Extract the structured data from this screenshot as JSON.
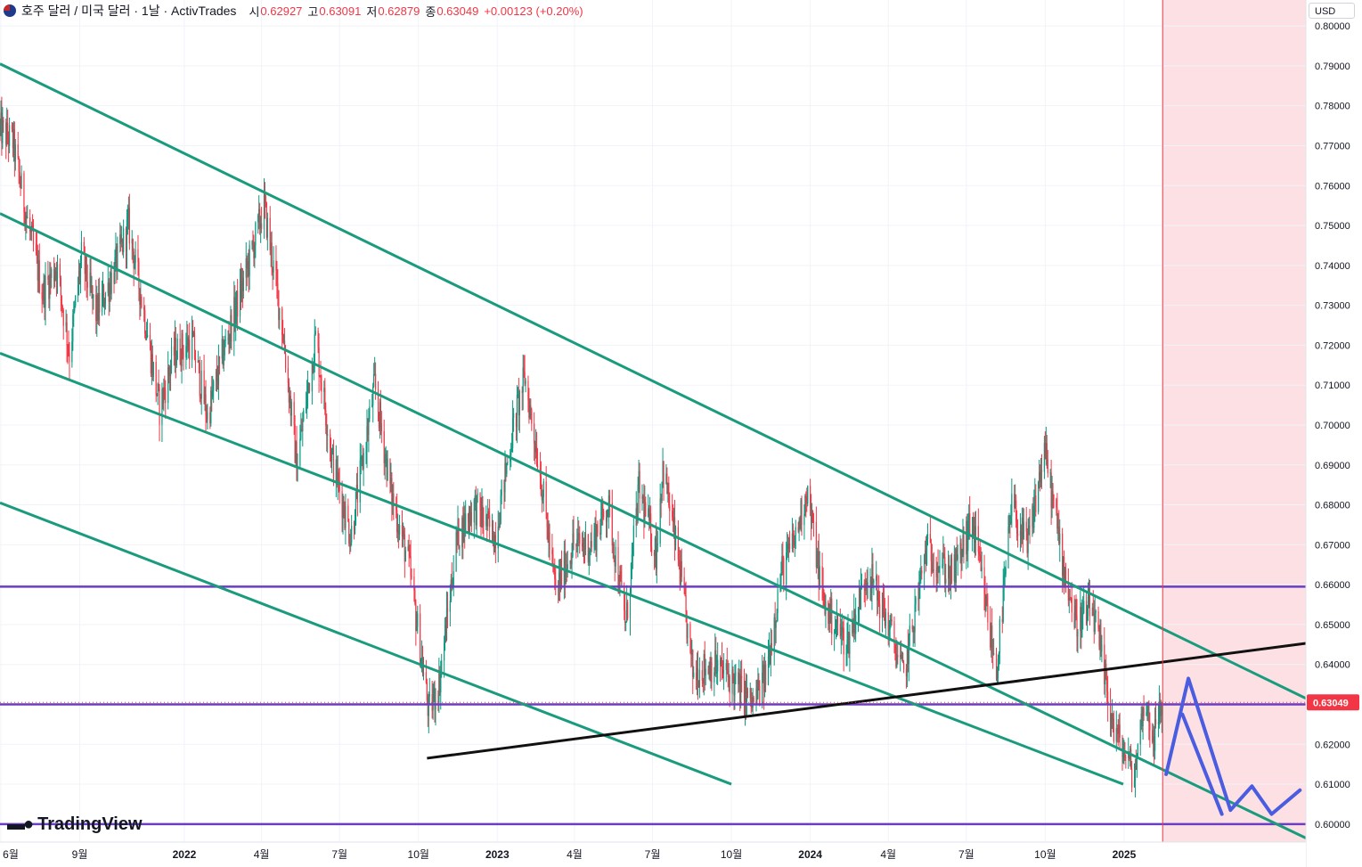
{
  "header": {
    "symbol": "호주 달러 / 미국 달러 · 1날 · ActivTrades",
    "open_label": "시",
    "open": "0.62927",
    "high_label": "고",
    "high": "0.63091",
    "low_label": "저",
    "low": "0.62879",
    "close_label": "종",
    "close": "0.63049",
    "change": "+0.00123 (+0.20%)"
  },
  "currency_button": "USD",
  "logo_text": "TradingView",
  "icons": {
    "flag": "australia-flag-icon",
    "logo": "tradingview-logo-icon"
  },
  "colors": {
    "bull": "#089981",
    "bear": "#f23645",
    "channel": "#1b9b7e",
    "level": "#6a3dc2",
    "trend": "#111111",
    "forecast_arrow": "#4a5de0",
    "future_zone": "#fde0e3",
    "last_price": "#f23645"
  },
  "chart_data": {
    "type": "candlestick",
    "y_axis": {
      "ticks": [
        "0.80000",
        "0.79000",
        "0.78000",
        "0.77000",
        "0.76000",
        "0.75000",
        "0.74000",
        "0.73000",
        "0.72000",
        "0.71000",
        "0.70000",
        "0.69000",
        "0.68000",
        "0.67000",
        "0.66000",
        "0.65000",
        "0.64000",
        "0.63000",
        "0.62000",
        "0.61000",
        "0.60000"
      ],
      "range": [
        0.5955,
        0.8065
      ]
    },
    "x_axis": {
      "labels": [
        "6월",
        "9월",
        "2022",
        "4월",
        "7월",
        "10월",
        "2023",
        "4월",
        "7월",
        "10월",
        "2024",
        "4월",
        "7월",
        "10월",
        "2025"
      ],
      "range": [
        "2021-05-31",
        "2025-08-01"
      ],
      "label_dates": [
        "2021-06-01",
        "2021-09-01",
        "2022-01-01",
        "2022-04-01",
        "2022-07-01",
        "2022-10-01",
        "2023-01-01",
        "2023-04-01",
        "2023-07-01",
        "2023-10-01",
        "2024-01-01",
        "2024-04-01",
        "2024-07-01",
        "2024-10-01",
        "2025-01-01"
      ]
    },
    "last_price": "0.63049",
    "price_path": [
      [
        "2021-05-31",
        0.774
      ],
      [
        "2021-06-15",
        0.771
      ],
      [
        "2021-07-01",
        0.752
      ],
      [
        "2021-07-20",
        0.733
      ],
      [
        "2021-08-05",
        0.74
      ],
      [
        "2021-08-20",
        0.718
      ],
      [
        "2021-09-03",
        0.742
      ],
      [
        "2021-09-20",
        0.728
      ],
      [
        "2021-10-05",
        0.735
      ],
      [
        "2021-10-28",
        0.75
      ],
      [
        "2021-11-15",
        0.728
      ],
      [
        "2021-12-03",
        0.704
      ],
      [
        "2021-12-20",
        0.718
      ],
      [
        "2022-01-10",
        0.721
      ],
      [
        "2022-01-28",
        0.702
      ],
      [
        "2022-02-15",
        0.718
      ],
      [
        "2022-03-10",
        0.735
      ],
      [
        "2022-04-04",
        0.755
      ],
      [
        "2022-04-25",
        0.725
      ],
      [
        "2022-05-12",
        0.69
      ],
      [
        "2022-06-03",
        0.722
      ],
      [
        "2022-06-22",
        0.692
      ],
      [
        "2022-07-14",
        0.672
      ],
      [
        "2022-08-11",
        0.71
      ],
      [
        "2022-08-30",
        0.683
      ],
      [
        "2022-09-20",
        0.665
      ],
      [
        "2022-10-13",
        0.628
      ],
      [
        "2022-10-25",
        0.635
      ],
      [
        "2022-11-15",
        0.672
      ],
      [
        "2022-12-05",
        0.68
      ],
      [
        "2022-12-29",
        0.672
      ],
      [
        "2023-01-20",
        0.7
      ],
      [
        "2023-02-02",
        0.712
      ],
      [
        "2023-02-20",
        0.688
      ],
      [
        "2023-03-10",
        0.658
      ],
      [
        "2023-03-30",
        0.67
      ],
      [
        "2023-04-20",
        0.67
      ],
      [
        "2023-05-10",
        0.68
      ],
      [
        "2023-05-31",
        0.65
      ],
      [
        "2023-06-15",
        0.684
      ],
      [
        "2023-07-05",
        0.668
      ],
      [
        "2023-07-13",
        0.69
      ],
      [
        "2023-08-01",
        0.665
      ],
      [
        "2023-08-17",
        0.638
      ],
      [
        "2023-09-10",
        0.64
      ],
      [
        "2023-09-28",
        0.637
      ],
      [
        "2023-10-26",
        0.63
      ],
      [
        "2023-11-10",
        0.637
      ],
      [
        "2023-11-28",
        0.663
      ],
      [
        "2023-12-15",
        0.672
      ],
      [
        "2023-12-28",
        0.684
      ],
      [
        "2024-01-17",
        0.655
      ],
      [
        "2024-02-13",
        0.645
      ],
      [
        "2024-03-08",
        0.664
      ],
      [
        "2024-04-01",
        0.65
      ],
      [
        "2024-04-19",
        0.637
      ],
      [
        "2024-05-15",
        0.669
      ],
      [
        "2024-06-15",
        0.662
      ],
      [
        "2024-07-08",
        0.676
      ],
      [
        "2024-08-05",
        0.638
      ],
      [
        "2024-08-23",
        0.68
      ],
      [
        "2024-09-10",
        0.669
      ],
      [
        "2024-09-30",
        0.694
      ],
      [
        "2024-10-22",
        0.665
      ],
      [
        "2024-11-06",
        0.65
      ],
      [
        "2024-11-25",
        0.654
      ],
      [
        "2024-12-20",
        0.624
      ],
      [
        "2025-01-13",
        0.612
      ],
      [
        "2025-01-24",
        0.631
      ],
      [
        "2025-02-05",
        0.622
      ],
      [
        "2025-02-14",
        0.63
      ]
    ],
    "horizontal_levels": [
      0.6595,
      0.63,
      0.6
    ],
    "channel_lines": [
      [
        [
          "2021-05-31",
          0.7905
        ],
        [
          "2025-08-01",
          0.6315
        ]
      ],
      [
        [
          "2021-05-31",
          0.753
        ],
        [
          "2025-08-01",
          0.5965
        ]
      ],
      [
        [
          "2021-05-31",
          0.718
        ],
        [
          "2024-12-31",
          0.61
        ]
      ],
      [
        [
          "2021-05-31",
          0.6805
        ],
        [
          "2023-10-01",
          0.61
        ]
      ]
    ],
    "trend_line": [
      [
        "2022-10-11",
        0.6165
      ],
      [
        "2025-08-01",
        0.6453
      ]
    ],
    "future_zone_start": "2025-02-15",
    "forecast_arrow": [
      [
        "2025-02-19",
        0.6125
      ],
      [
        "2025-03-17",
        0.6365
      ],
      [
        "2025-05-05",
        0.6035
      ],
      [
        "2025-05-30",
        0.6095
      ],
      [
        "2025-06-22",
        0.6025
      ],
      [
        "2025-07-25",
        0.6085
      ]
    ],
    "forecast_secondary": [
      [
        "2025-03-10",
        0.6275
      ],
      [
        "2025-04-25",
        0.6025
      ]
    ]
  }
}
